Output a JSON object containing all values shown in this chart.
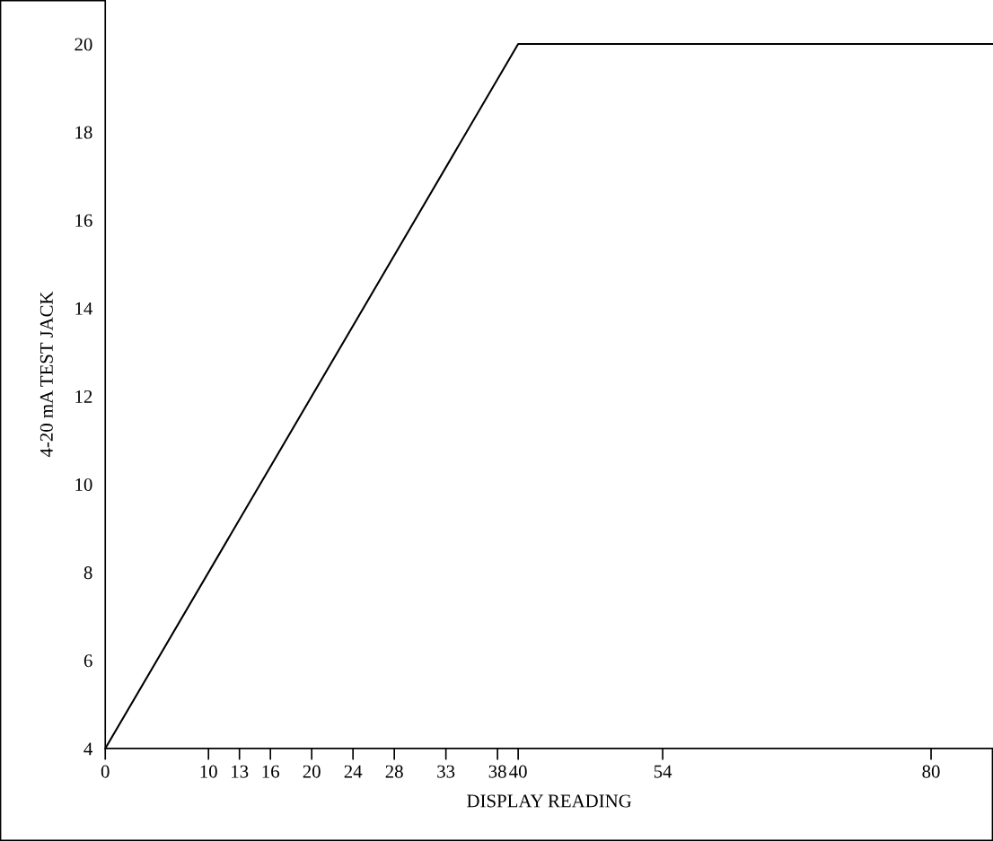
{
  "chart_data": {
    "type": "line",
    "xlabel": "DISPLAY READING",
    "ylabel": "4-20 mA TEST JACK",
    "series": [
      {
        "color": "#000000",
        "x": [
          0,
          40,
          86
        ],
        "values": [
          4,
          20,
          20
        ]
      }
    ],
    "xlim": [
      0,
      86
    ],
    "ylim": [
      4,
      21
    ],
    "xticks": [
      0,
      10,
      13,
      16,
      20,
      24,
      28,
      33,
      38,
      40,
      54,
      80
    ],
    "yticks": [
      4,
      6,
      8,
      10,
      12,
      14,
      16,
      18,
      20
    ],
    "grid": false,
    "line_style": "solid"
  }
}
